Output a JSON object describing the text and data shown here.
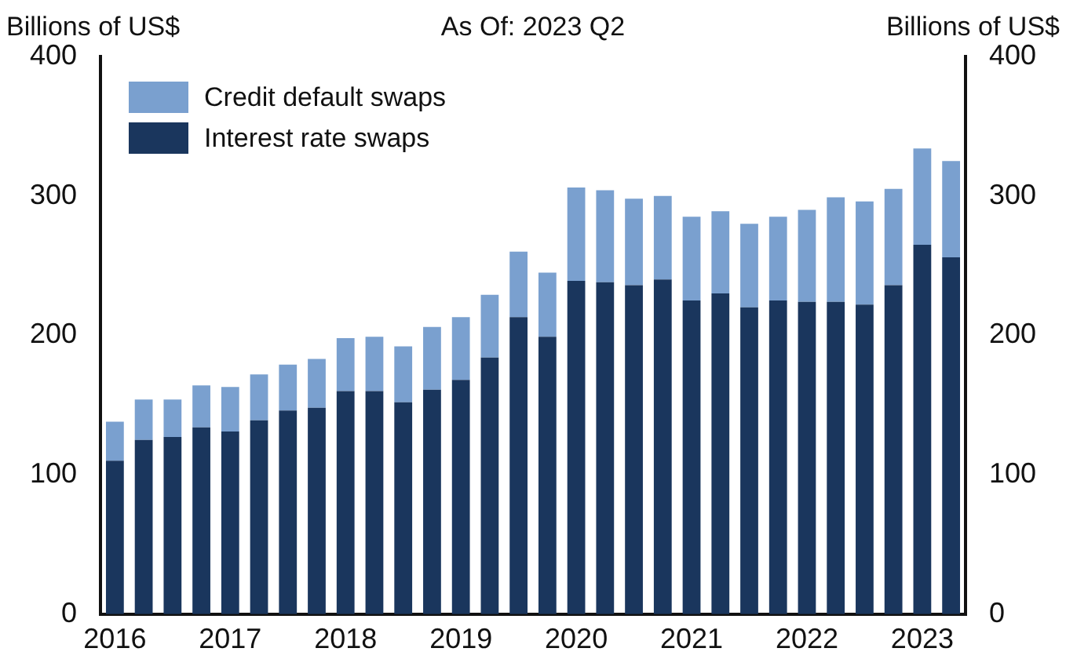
{
  "chart_data": {
    "type": "bar",
    "title": "As Of: 2023 Q2",
    "ylabel": "Billions of US$",
    "y2label": "Billions of US$",
    "categories": [
      "2016",
      null,
      null,
      null,
      "2017",
      null,
      null,
      null,
      "2018",
      null,
      null,
      null,
      "2019",
      null,
      null,
      null,
      "2020",
      null,
      null,
      null,
      "2021",
      null,
      null,
      null,
      "2022",
      null,
      null,
      null,
      "2023",
      null
    ],
    "stacked": true,
    "series": [
      {
        "name": "Interest rate swaps",
        "color": "#1a365d",
        "values": [
          110,
          125,
          127,
          134,
          131,
          139,
          146,
          148,
          160,
          160,
          152,
          161,
          168,
          184,
          213,
          199,
          239,
          238,
          236,
          240,
          225,
          230,
          220,
          225,
          224,
          224,
          222,
          236,
          265,
          256
        ]
      },
      {
        "name": "Credit default swaps",
        "color": "#7aa0cf",
        "values": [
          28,
          29,
          27,
          30,
          32,
          33,
          33,
          35,
          38,
          39,
          40,
          45,
          45,
          45,
          47,
          46,
          67,
          66,
          62,
          60,
          60,
          59,
          60,
          60,
          66,
          75,
          74,
          69,
          69,
          69
        ]
      }
    ],
    "ylim": [
      0,
      400
    ],
    "yticks": [
      0,
      100,
      200,
      300,
      400
    ],
    "y2lim": [
      0,
      400
    ],
    "y2ticks": [
      0,
      100,
      200,
      300,
      400
    ],
    "grid": false,
    "legend": "top left"
  }
}
